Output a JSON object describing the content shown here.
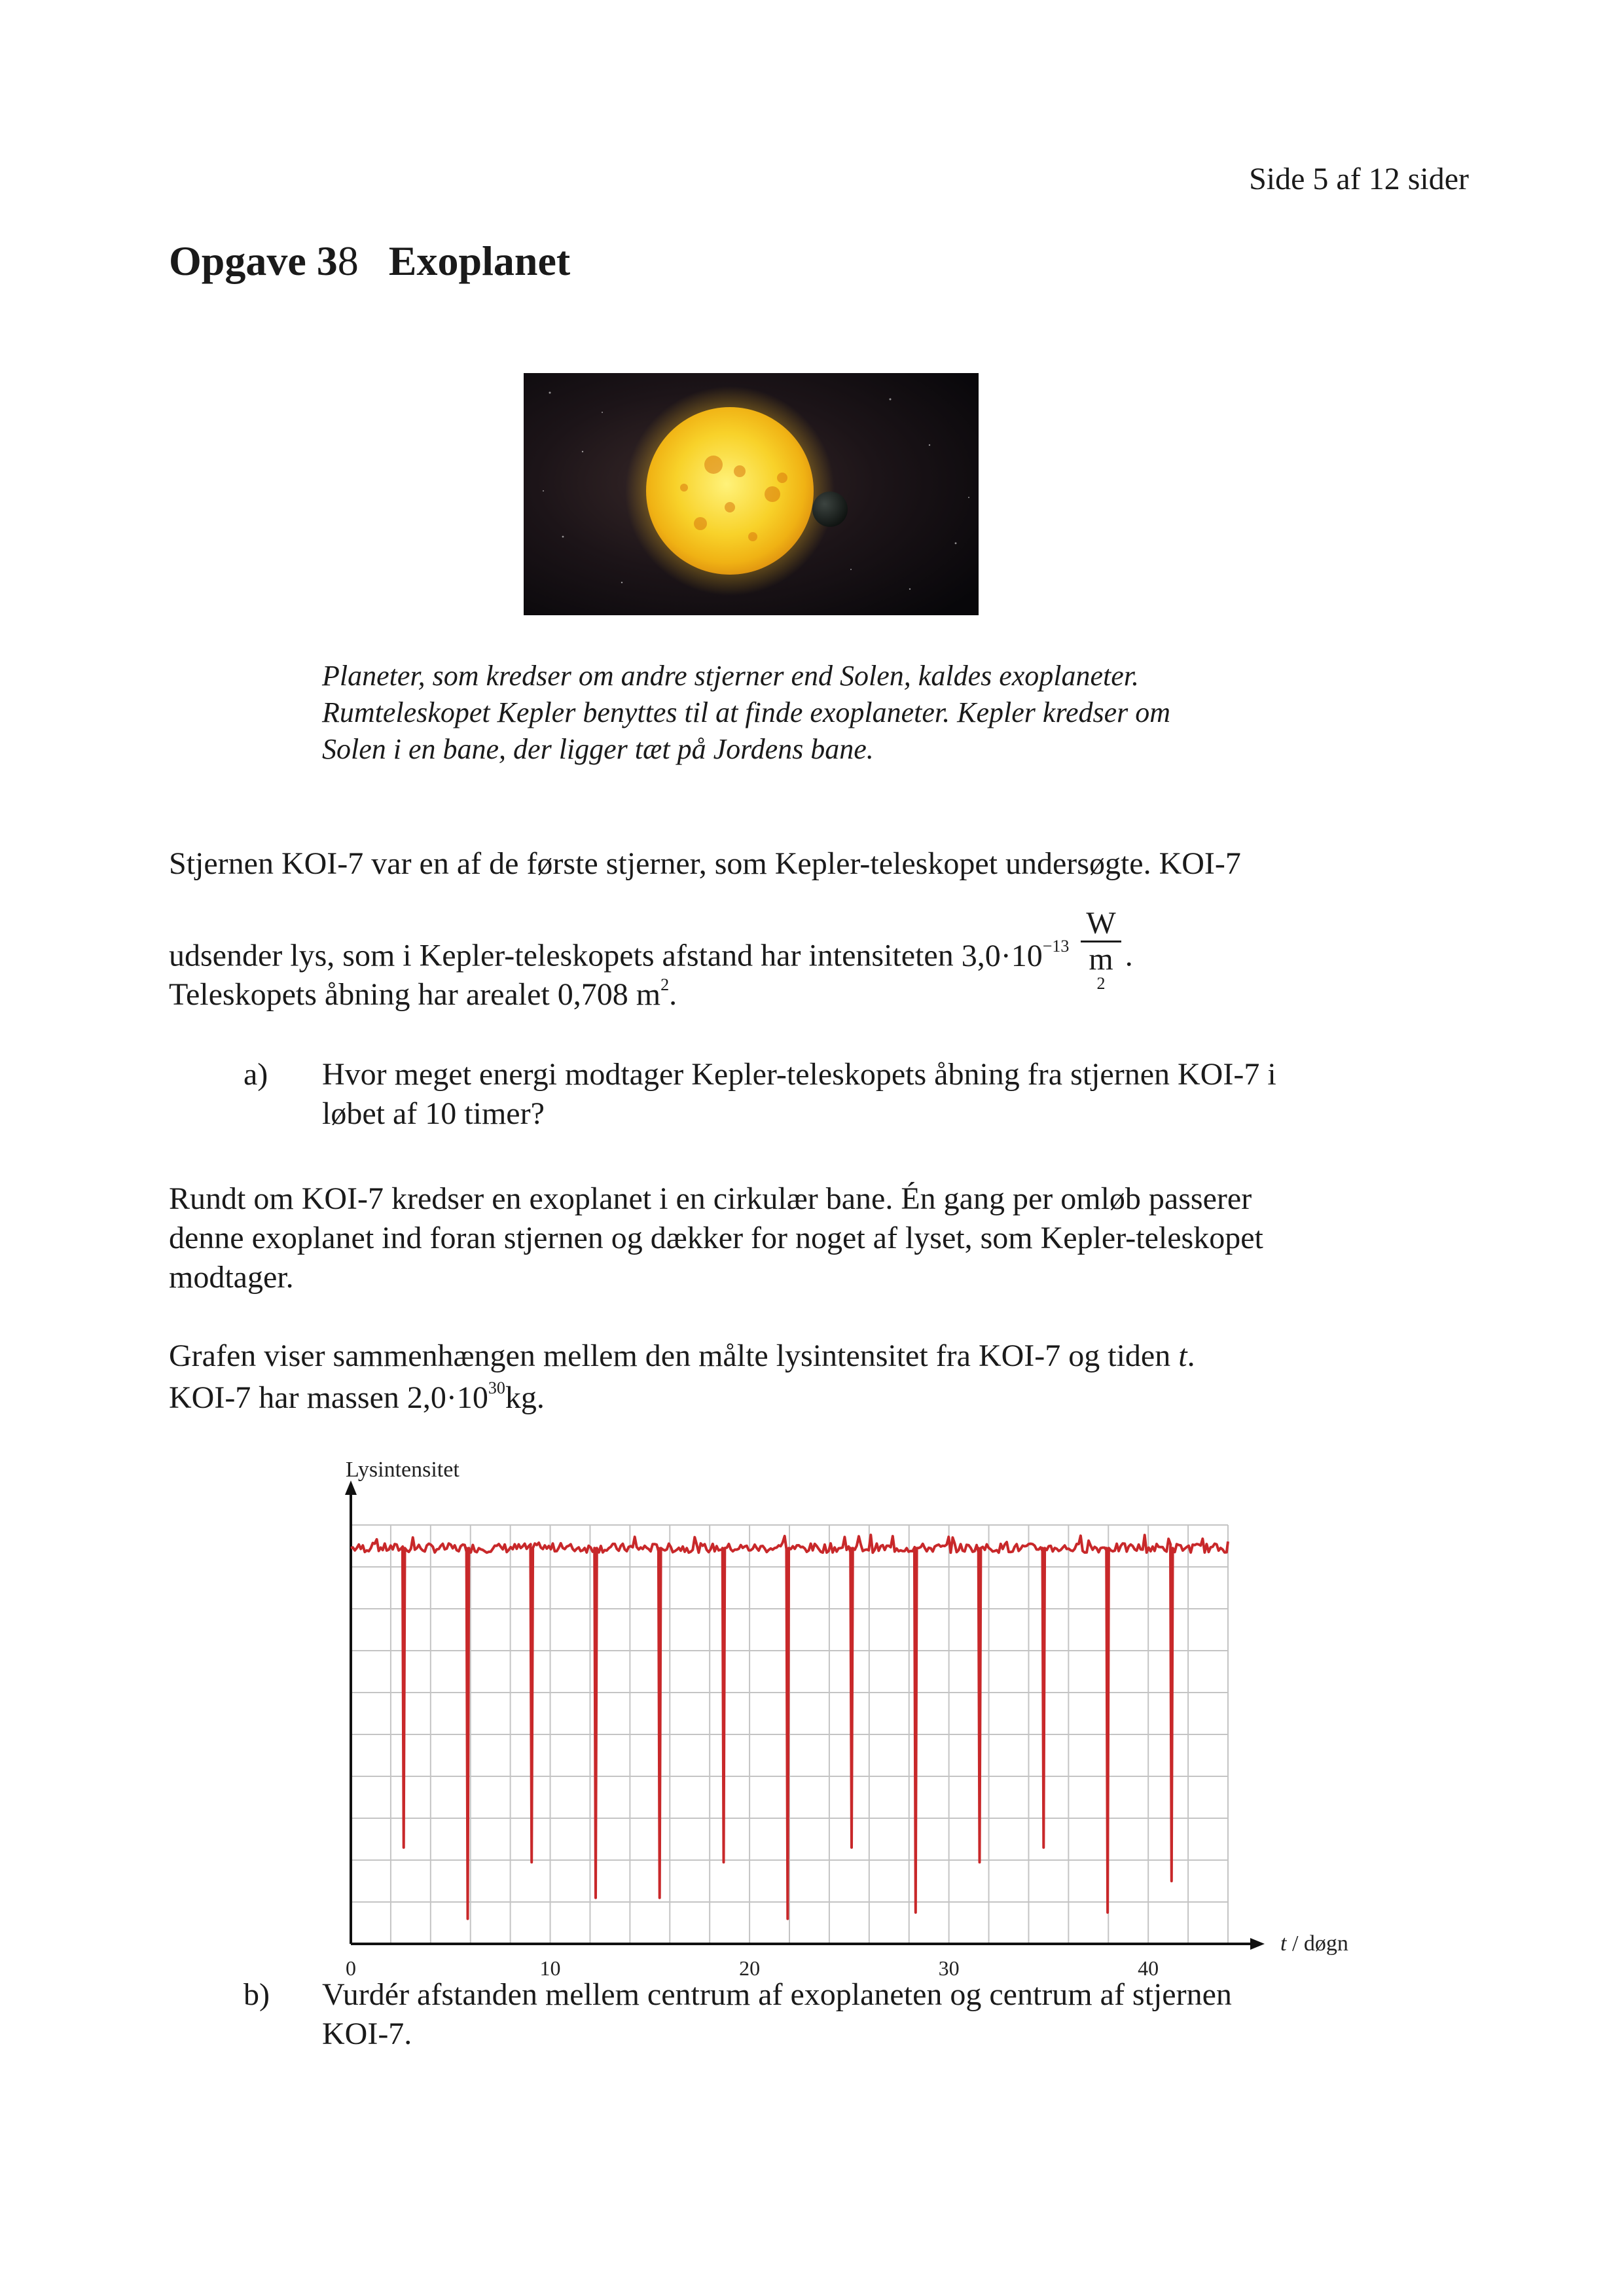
{
  "page_number": "Side 5 af 12 sider",
  "title": {
    "label": "Opgave 3",
    "number": "8",
    "name": "Exoplanet"
  },
  "photo": {
    "icon": "star-with-transiting-planet-image",
    "colors": {
      "space": "#0d0a0f",
      "star": "#f6c21a",
      "planet": "#1e2320"
    }
  },
  "caption": {
    "line1": "Planeter, som kredser om andre stjerner end Solen, kaldes exoplaneter.",
    "line2": "Rumteleskopet Kepler benyttes til at finde exoplaneter. Kepler kredser om",
    "line3": "Solen i en bane, der ligger tæt på Jordens bane."
  },
  "intro": {
    "line1": "Stjernen KOI-7 var en af de første stjerner, som Kepler-teleskopet undersøgte. KOI-7",
    "line2_text": "udsender lys, som i Kepler-teleskopets afstand har intensiteten",
    "intensity_mantissa": "3,0·10",
    "intensity_exponent": "−13",
    "unit_numerator": "W",
    "unit_denominator": "m",
    "unit_denominator_exponent": "2",
    "period": ".",
    "line3_text": "Teleskopets åbning har arealet 0,708",
    "area_unit": "m",
    "area_unit_exponent": "2",
    "line3_end": "."
  },
  "question_a": {
    "label": "a)",
    "line1": "Hvor meget energi modtager Kepler-teleskopets åbning fra stjernen KOI-7 i",
    "line2": "løbet af 10 timer?"
  },
  "paragraph2": {
    "line1": "Rundt om KOI-7 kredser en exoplanet i en cirkulær bane. Én gang per omløb passerer",
    "line2": "denne exoplanet ind foran stjernen og dækker for noget af lyset, som Kepler-teleskopet",
    "line3": "modtager."
  },
  "paragraph3": {
    "line1_text": "Grafen viser sammenhængen mellem den målte lysintensitet fra KOI-7 og tiden",
    "line1_var": "t",
    "line1_end": ".",
    "line2_text": "KOI-7 har massen",
    "mass_mantissa": "2,0·10",
    "mass_exponent": "30",
    "mass_unit": "kg."
  },
  "chart_data": {
    "type": "line",
    "ylabel": "Lysintensitet",
    "xlabel_var": "t",
    "xlabel_unit": " / døgn",
    "xlim": [
      0,
      44
    ],
    "x_ticks": [
      0,
      10,
      20,
      30,
      40
    ],
    "ylim": [
      0,
      10
    ],
    "baseline": 9.45,
    "grid": true,
    "line_color": "#c8282a",
    "dip_period_days": 3.21,
    "dips": [
      {
        "t": 2.65,
        "y": 2.3
      },
      {
        "t": 5.86,
        "y": 0.6
      },
      {
        "t": 9.07,
        "y": 1.95
      },
      {
        "t": 12.28,
        "y": 1.1
      },
      {
        "t": 15.49,
        "y": 1.1
      },
      {
        "t": 18.7,
        "y": 1.95
      },
      {
        "t": 21.91,
        "y": 0.6
      },
      {
        "t": 25.12,
        "y": 2.3
      },
      {
        "t": 28.33,
        "y": 0.75
      },
      {
        "t": 31.54,
        "y": 1.95
      },
      {
        "t": 34.75,
        "y": 2.3
      },
      {
        "t": 37.96,
        "y": 0.75
      },
      {
        "t": 41.17,
        "y": 1.5
      }
    ]
  },
  "question_b": {
    "label": "b)",
    "line1": "Vurdér afstanden mellem centrum af exoplaneten og centrum af stjernen",
    "line2": "KOI-7."
  }
}
